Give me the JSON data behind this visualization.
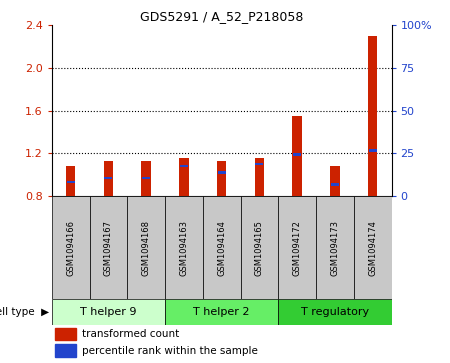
{
  "title": "GDS5291 / A_52_P218058",
  "samples": [
    "GSM1094166",
    "GSM1094167",
    "GSM1094168",
    "GSM1094163",
    "GSM1094164",
    "GSM1094165",
    "GSM1094172",
    "GSM1094173",
    "GSM1094174"
  ],
  "red_values": [
    1.08,
    1.13,
    1.13,
    1.16,
    1.13,
    1.16,
    1.55,
    1.08,
    2.3
  ],
  "blue_positions": [
    0.93,
    0.97,
    0.97,
    1.08,
    1.02,
    1.1,
    1.19,
    0.91,
    1.23
  ],
  "ylim_left": [
    0.8,
    2.4
  ],
  "ylim_right": [
    0,
    100
  ],
  "yticks_left": [
    0.8,
    1.2,
    1.6,
    2.0,
    2.4
  ],
  "yticks_right": [
    0,
    25,
    50,
    75,
    100
  ],
  "ytick_labels_right": [
    "0",
    "25",
    "50",
    "75",
    "100%"
  ],
  "groups": [
    {
      "label": "T helper 9",
      "indices": [
        0,
        1,
        2
      ],
      "color": "#ccffcc"
    },
    {
      "label": "T helper 2",
      "indices": [
        3,
        4,
        5
      ],
      "color": "#66ee66"
    },
    {
      "label": "T regulatory",
      "indices": [
        6,
        7,
        8
      ],
      "color": "#33cc33"
    }
  ],
  "bar_width": 0.25,
  "bar_bottom": 0.8,
  "bar_color_red": "#cc2200",
  "bar_color_blue": "#2244cc",
  "bg_color_sample": "#c8c8c8",
  "cell_type_label": "cell type",
  "legend_red": "transformed count",
  "legend_blue": "percentile rank within the sample",
  "grid_lines": [
    1.2,
    1.6,
    2.0
  ],
  "title_fontsize": 9,
  "tick_fontsize": 8,
  "bar_label_fontsize": 6,
  "group_fontsize": 8
}
